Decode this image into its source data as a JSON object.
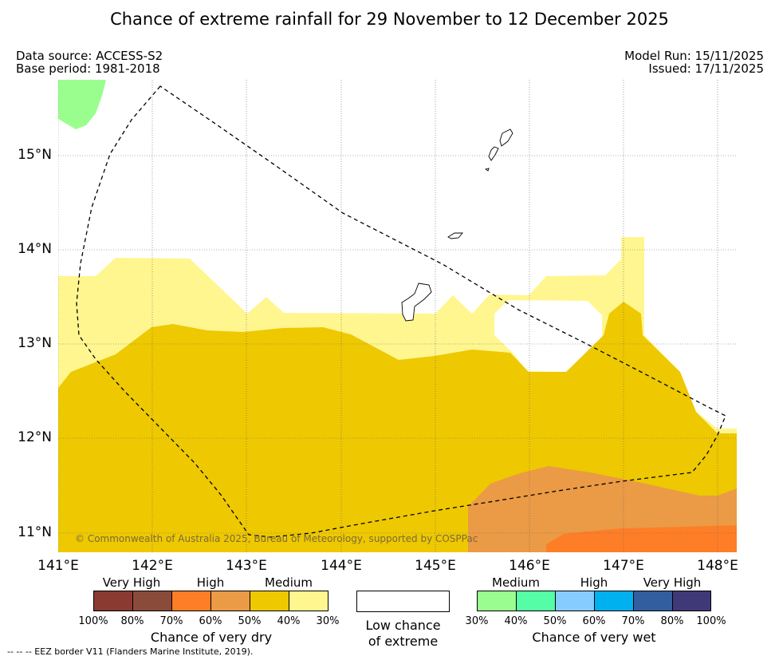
{
  "title": "Chance of extreme rainfall for 29 November to 12 December 2025",
  "meta": {
    "data_source": "Data source: ACCESS-S2",
    "base_period": "Base period: 1981-2018",
    "model_run": "Model Run: 15/11/2025",
    "issued": "Issued: 17/11/2025"
  },
  "map": {
    "latitude_labels": [
      "15°N",
      "14°N",
      "13°N",
      "12°N",
      "11°N"
    ],
    "longitude_labels": [
      "141°E",
      "142°E",
      "143°E",
      "144°E",
      "145°E",
      "146°E",
      "147°E",
      "148°E"
    ],
    "copyright": "© Commonwealth of Australia 2025, Bureau of Meteorology, supported by COSPPac",
    "regions": [
      {
        "name": "Medium chance of very dry (30-40%)",
        "color": "#fff68f"
      },
      {
        "name": "Medium chance of very dry (40-50%)",
        "color": "#eec800"
      },
      {
        "name": "High chance of very dry (50-60%)",
        "color": "#eb9a45"
      },
      {
        "name": "High chance of very dry (60-70%)",
        "color": "#fe7e27"
      },
      {
        "name": "Medium chance of very wet (30-40%)",
        "color": "#9afe8f"
      },
      {
        "name": "Low chance of extreme",
        "color": "#ffffff"
      }
    ]
  },
  "legend": {
    "dry": {
      "categories": [
        "Very High",
        "High",
        "Medium"
      ],
      "colors": [
        "#8b3a31",
        "#8a4b3b",
        "#fe7e27",
        "#eb9a45",
        "#eec800",
        "#fff68f"
      ],
      "ticks": [
        "100%",
        "80%",
        "70%",
        "60%",
        "50%",
        "40%",
        "30%"
      ],
      "title": "Chance of very dry"
    },
    "low": {
      "line1": "Low chance",
      "line2": "of extreme"
    },
    "wet": {
      "categories": [
        "Medium",
        "High",
        "Very High"
      ],
      "colors": [
        "#9afe8f",
        "#55fea6",
        "#86ccfe",
        "#00b0ef",
        "#325ea0",
        "#3f3978"
      ],
      "ticks": [
        "30%",
        "40%",
        "50%",
        "60%",
        "70%",
        "80%",
        "100%"
      ],
      "title": "Chance of very wet"
    }
  },
  "eez_note": "--  --  -- EEZ border V11 (Flanders Marine Institute, 2019)."
}
